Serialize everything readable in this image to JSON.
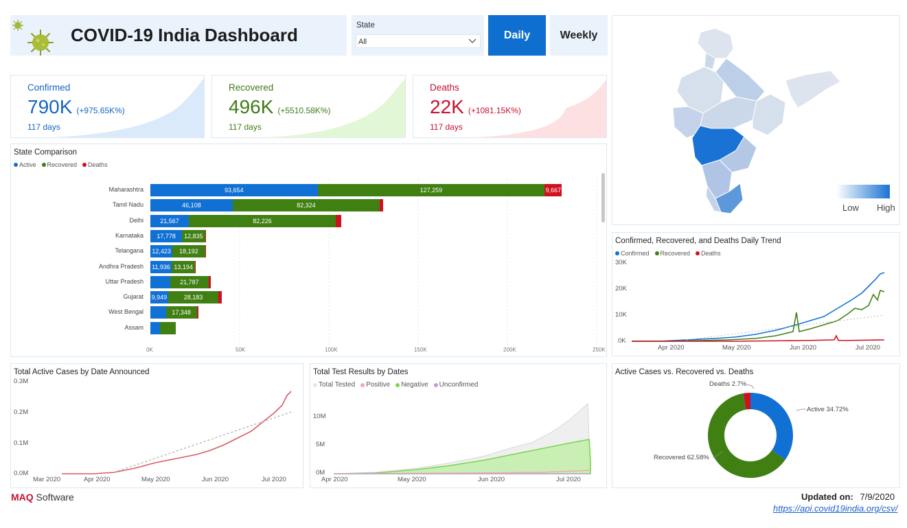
{
  "header": {
    "title": "COVID-19 India Dashboard",
    "state_label": "State",
    "state_value": "All",
    "daily_label": "Daily",
    "weekly_label": "Weekly"
  },
  "kpis": {
    "confirmed": {
      "label": "Confirmed",
      "value": "790K",
      "change": "(+975.65K%)",
      "days": "117 days",
      "color": "#1565c0",
      "fill": "#dbeafb"
    },
    "recovered": {
      "label": "Recovered",
      "value": "496K",
      "change": "(+5510.58K%)",
      "days": "117 days",
      "color": "#3e7c17",
      "fill": "#e2f7d5"
    },
    "deaths": {
      "label": "Deaths",
      "value": "22K",
      "change": "(+1081.15K%)",
      "days": "117 days",
      "color": "#c8102e",
      "fill": "#fde0e2"
    }
  },
  "state_comparison": {
    "title": "State Comparison",
    "legend": [
      "Active",
      "Recovered",
      "Deaths"
    ],
    "colors": {
      "active": "#1170d4",
      "recovered": "#408013",
      "deaths": "#d0101e"
    },
    "axis": [
      "0K",
      "50K",
      "100K",
      "150K",
      "200K",
      "250K"
    ],
    "rows": [
      {
        "state": "Maharashtra",
        "active": 93654,
        "recovered": 127259,
        "deaths": 9667,
        "a_lbl": "93,654",
        "r_lbl": "127,259",
        "d_lbl": "9,667"
      },
      {
        "state": "Tamil Nadu",
        "active": 46108,
        "recovered": 82324,
        "deaths": 1829,
        "a_lbl": "46,108",
        "r_lbl": "82,324",
        "d_lbl": ""
      },
      {
        "state": "Delhi",
        "active": 21567,
        "recovered": 82226,
        "deaths": 3213,
        "a_lbl": "21,567",
        "r_lbl": "82,226",
        "d_lbl": ""
      },
      {
        "state": "Karnataka",
        "active": 17778,
        "recovered": 12835,
        "deaths": 486,
        "a_lbl": "17,778",
        "r_lbl": "12,835",
        "d_lbl": ""
      },
      {
        "state": "Telangana",
        "active": 12423,
        "recovered": 18192,
        "deaths": 331,
        "a_lbl": "12,423",
        "r_lbl": "18,192",
        "d_lbl": ""
      },
      {
        "state": "Andhra Pradesh",
        "active": 11936,
        "recovered": 13194,
        "deaths": 292,
        "a_lbl": "11,936",
        "r_lbl": "13,194",
        "d_lbl": ""
      },
      {
        "state": "Uttar Pradesh",
        "active": 11000,
        "recovered": 21787,
        "deaths": 889,
        "a_lbl": "",
        "r_lbl": "21,787",
        "d_lbl": ""
      },
      {
        "state": "Gujarat",
        "active": 9949,
        "recovered": 28183,
        "deaths": 2008,
        "a_lbl": "9,949",
        "r_lbl": "28,183",
        "d_lbl": ""
      },
      {
        "state": "West Bengal",
        "active": 8700,
        "recovered": 17348,
        "deaths": 880,
        "a_lbl": "",
        "r_lbl": "17,348",
        "d_lbl": ""
      },
      {
        "state": "Assam",
        "active": 5300,
        "recovered": 9000,
        "deaths": 30,
        "a_lbl": "",
        "r_lbl": "",
        "d_lbl": ""
      }
    ]
  },
  "map": {
    "low_label": "Low",
    "high_label": "High"
  },
  "daily_trend": {
    "title": "Confirmed, Recovered, and Deaths Daily Trend",
    "legend": [
      "Confirmed",
      "Recovered",
      "Deaths"
    ],
    "y_ticks": [
      "30K",
      "20K",
      "10K",
      "0K"
    ],
    "x_ticks": [
      "Apr 2020",
      "May 2020",
      "Jun 2020",
      "Jul 2020"
    ]
  },
  "active_cases": {
    "title": "Total Active Cases by Date Announced",
    "y_ticks": [
      "0.3M",
      "0.2M",
      "0.1M",
      "0.0M"
    ],
    "x_ticks": [
      "Mar 2020",
      "Apr 2020",
      "May 2020",
      "Jun 2020",
      "Jul 2020"
    ]
  },
  "tests": {
    "title": "Total Test Results by Dates",
    "legend": [
      "Total Tested",
      "Positive",
      "Negative",
      "Unconfirmed"
    ],
    "y_ticks": [
      "10M",
      "5M",
      "0M"
    ],
    "x_ticks": [
      "Apr 2020",
      "May 2020",
      "Jun 2020",
      "Jul 2020"
    ]
  },
  "donut": {
    "title": "Active Cases vs. Recovered vs. Deaths",
    "slices": [
      {
        "name": "Active",
        "pct": 34.72,
        "label": "Active 34.72%",
        "color": "#1170d4"
      },
      {
        "name": "Recovered",
        "pct": 62.58,
        "label": "Recovered 62.58%",
        "color": "#408013"
      },
      {
        "name": "Deaths",
        "pct": 2.7,
        "label": "Deaths 2.7%",
        "color": "#d0101e"
      }
    ]
  },
  "footer": {
    "brand_maq": "MAQ",
    "brand_software": " Software",
    "updated_label": "Updated on:",
    "updated_value": "7/9/2020",
    "source_link": "https://api.covid19india.org/csv/"
  }
}
